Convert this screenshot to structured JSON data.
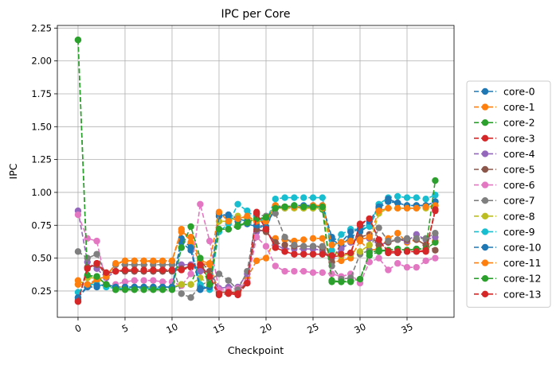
{
  "chart_data": {
    "type": "line",
    "title": "IPC per Core",
    "xlabel": "Checkpoint",
    "ylabel": "IPC",
    "xlim": [
      -2.2,
      40.0
    ],
    "ylim": [
      0.05,
      2.27
    ],
    "xticks": [
      0,
      5,
      10,
      15,
      20,
      25,
      30,
      35
    ],
    "yticks": [
      0.25,
      0.5,
      0.75,
      1.0,
      1.25,
      1.5,
      1.75,
      2.0,
      2.25
    ],
    "ytick_labels": [
      "0.25",
      "0.50",
      "0.75",
      "1.00",
      "1.25",
      "1.50",
      "1.75",
      "2.00",
      "2.25"
    ],
    "grid": true,
    "legend_position": "right-outside",
    "line_style": "dashed",
    "marker": "circle",
    "x": [
      0,
      1,
      2,
      3,
      4,
      5,
      6,
      7,
      8,
      9,
      10,
      11,
      12,
      13,
      14,
      15,
      16,
      17,
      18,
      19,
      20,
      21,
      22,
      23,
      24,
      25,
      26,
      27,
      28,
      29,
      30,
      31,
      32,
      33,
      34,
      35,
      36,
      37,
      38
    ],
    "series": [
      {
        "name": "core-0",
        "color": "#1f77b4",
        "values": [
          0.2,
          0.28,
          0.28,
          0.3,
          0.28,
          0.28,
          0.28,
          0.28,
          0.28,
          0.28,
          0.28,
          0.62,
          0.56,
          0.26,
          0.28,
          0.84,
          0.82,
          0.78,
          0.76,
          0.74,
          0.73,
          0.89,
          0.88,
          0.89,
          0.89,
          0.89,
          0.89,
          0.64,
          0.6,
          0.66,
          0.7,
          0.75,
          0.88,
          0.93,
          0.92,
          0.9,
          0.9,
          0.9,
          0.93
        ]
      },
      {
        "name": "core-1",
        "color": "#ff7f0e",
        "values": [
          0.33,
          0.29,
          0.33,
          0.36,
          0.45,
          0.48,
          0.48,
          0.48,
          0.47,
          0.47,
          0.48,
          0.72,
          0.62,
          0.46,
          0.45,
          0.24,
          0.24,
          0.24,
          0.35,
          0.48,
          0.5,
          0.65,
          0.64,
          0.63,
          0.64,
          0.65,
          0.65,
          0.47,
          0.48,
          0.5,
          0.63,
          0.56,
          0.57,
          0.65,
          0.69,
          0.62,
          0.64,
          0.6,
          0.63
        ]
      },
      {
        "name": "core-2",
        "color": "#2ca02c",
        "values": [
          2.16,
          0.36,
          0.36,
          0.3,
          0.26,
          0.27,
          0.27,
          0.27,
          0.27,
          0.27,
          0.27,
          0.3,
          0.3,
          0.48,
          0.28,
          0.72,
          0.72,
          0.74,
          0.77,
          0.8,
          0.8,
          0.9,
          0.89,
          0.89,
          0.88,
          0.88,
          0.87,
          0.32,
          0.32,
          0.33,
          0.34,
          0.52,
          0.55,
          0.56,
          0.57,
          0.56,
          0.57,
          0.57,
          0.62
        ]
      },
      {
        "name": "core-3",
        "color": "#d62728",
        "values": [
          0.17,
          0.43,
          0.46,
          0.38,
          0.4,
          0.41,
          0.4,
          0.4,
          0.4,
          0.4,
          0.41,
          0.41,
          0.43,
          0.43,
          0.34,
          0.22,
          0.23,
          0.22,
          0.31,
          0.85,
          0.72,
          0.58,
          0.55,
          0.53,
          0.53,
          0.53,
          0.53,
          0.51,
          0.52,
          0.53,
          0.76,
          0.8,
          0.64,
          0.54,
          0.54,
          0.55,
          0.55,
          0.55,
          0.86
        ]
      },
      {
        "name": "core-4",
        "color": "#9467bd",
        "values": [
          0.86,
          0.47,
          0.42,
          0.35,
          0.4,
          0.4,
          0.4,
          0.4,
          0.4,
          0.4,
          0.4,
          0.45,
          0.45,
          0.4,
          0.4,
          0.27,
          0.28,
          0.28,
          0.38,
          0.7,
          0.72,
          0.6,
          0.57,
          0.57,
          0.57,
          0.57,
          0.56,
          0.5,
          0.57,
          0.62,
          0.65,
          0.65,
          0.6,
          0.62,
          0.64,
          0.63,
          0.68,
          0.64,
          0.66
        ]
      },
      {
        "name": "core-5",
        "color": "#8c564b",
        "values": [
          0.18,
          0.43,
          0.45,
          0.38,
          0.4,
          0.4,
          0.4,
          0.4,
          0.4,
          0.4,
          0.4,
          0.42,
          0.44,
          0.48,
          0.4,
          0.24,
          0.24,
          0.24,
          0.32,
          0.72,
          0.7,
          0.62,
          0.6,
          0.59,
          0.59,
          0.59,
          0.58,
          0.47,
          0.62,
          0.63,
          0.66,
          0.68,
          0.6,
          0.62,
          0.64,
          0.64,
          0.64,
          0.6,
          0.56
        ]
      },
      {
        "name": "core-6",
        "color": "#e377c2",
        "values": [
          0.83,
          0.65,
          0.63,
          0.3,
          0.3,
          0.32,
          0.33,
          0.33,
          0.33,
          0.32,
          0.32,
          0.29,
          0.38,
          0.91,
          0.63,
          0.26,
          0.26,
          0.27,
          0.32,
          0.66,
          0.59,
          0.44,
          0.4,
          0.4,
          0.4,
          0.39,
          0.39,
          0.38,
          0.36,
          0.38,
          0.31,
          0.47,
          0.5,
          0.41,
          0.46,
          0.43,
          0.43,
          0.48,
          0.5
        ]
      },
      {
        "name": "core-7",
        "color": "#7f7f7f",
        "values": [
          0.55,
          0.5,
          0.53,
          0.37,
          0.45,
          0.45,
          0.45,
          0.45,
          0.45,
          0.45,
          0.45,
          0.23,
          0.2,
          0.29,
          0.33,
          0.38,
          0.33,
          0.26,
          0.4,
          0.83,
          0.82,
          0.84,
          0.66,
          0.6,
          0.59,
          0.59,
          0.59,
          0.44,
          0.34,
          0.35,
          0.53,
          0.56,
          0.73,
          0.63,
          0.64,
          0.65,
          0.65,
          0.65,
          0.69
        ]
      },
      {
        "name": "core-8",
        "color": "#bcbd22",
        "values": [
          0.3,
          0.35,
          0.35,
          0.3,
          0.28,
          0.28,
          0.28,
          0.28,
          0.28,
          0.28,
          0.28,
          0.3,
          0.3,
          0.35,
          0.3,
          0.78,
          0.78,
          0.82,
          0.8,
          0.78,
          0.78,
          0.88,
          0.88,
          0.88,
          0.88,
          0.88,
          0.88,
          0.55,
          0.52,
          0.53,
          0.55,
          0.6,
          0.84,
          0.88,
          0.88,
          0.88,
          0.88,
          0.88,
          0.9
        ]
      },
      {
        "name": "core-9",
        "color": "#17becf",
        "values": [
          0.24,
          0.3,
          0.3,
          0.28,
          0.27,
          0.27,
          0.27,
          0.27,
          0.27,
          0.27,
          0.28,
          0.58,
          0.58,
          0.3,
          0.26,
          0.7,
          0.76,
          0.91,
          0.86,
          0.8,
          0.78,
          0.95,
          0.96,
          0.96,
          0.96,
          0.96,
          0.96,
          0.56,
          0.68,
          0.72,
          0.72,
          0.74,
          0.91,
          0.96,
          0.97,
          0.96,
          0.96,
          0.95,
          0.98
        ]
      },
      {
        "name": "core-10",
        "color": "#1f77b4",
        "values": [
          0.2,
          0.29,
          0.29,
          0.3,
          0.28,
          0.28,
          0.28,
          0.28,
          0.28,
          0.28,
          0.28,
          0.65,
          0.58,
          0.27,
          0.28,
          0.82,
          0.83,
          0.8,
          0.78,
          0.75,
          0.74,
          0.89,
          0.89,
          0.9,
          0.9,
          0.9,
          0.9,
          0.66,
          0.62,
          0.7,
          0.72,
          0.78,
          0.89,
          0.95,
          0.92,
          0.9,
          0.9,
          0.9,
          0.93
        ]
      },
      {
        "name": "core-11",
        "color": "#ff7f0e",
        "values": [
          0.3,
          0.3,
          0.34,
          0.36,
          0.46,
          0.48,
          0.48,
          0.48,
          0.48,
          0.48,
          0.48,
          0.7,
          0.66,
          0.48,
          0.46,
          0.85,
          0.78,
          0.8,
          0.82,
          0.78,
          0.78,
          0.9,
          0.89,
          0.89,
          0.89,
          0.9,
          0.9,
          0.6,
          0.62,
          0.63,
          0.64,
          0.66,
          0.86,
          0.88,
          0.88,
          0.88,
          0.88,
          0.89,
          0.9
        ]
      },
      {
        "name": "core-12",
        "color": "#2ca02c",
        "values": [
          2.16,
          0.37,
          0.36,
          0.3,
          0.26,
          0.26,
          0.26,
          0.26,
          0.26,
          0.26,
          0.26,
          0.58,
          0.74,
          0.5,
          0.3,
          0.72,
          0.72,
          0.75,
          0.77,
          0.8,
          0.81,
          0.88,
          0.89,
          0.9,
          0.89,
          0.89,
          0.89,
          0.33,
          0.32,
          0.32,
          0.34,
          0.54,
          0.56,
          0.56,
          0.57,
          0.56,
          0.57,
          0.57,
          1.09
        ]
      },
      {
        "name": "core-13",
        "color": "#d62728",
        "values": [
          0.17,
          0.42,
          0.46,
          0.39,
          0.4,
          0.41,
          0.41,
          0.41,
          0.41,
          0.41,
          0.41,
          0.41,
          0.44,
          0.45,
          0.36,
          0.23,
          0.24,
          0.23,
          0.31,
          0.84,
          0.72,
          0.58,
          0.55,
          0.53,
          0.53,
          0.53,
          0.53,
          0.52,
          0.53,
          0.54,
          0.75,
          0.8,
          0.64,
          0.55,
          0.55,
          0.55,
          0.55,
          0.56,
          0.87
        ]
      }
    ]
  }
}
